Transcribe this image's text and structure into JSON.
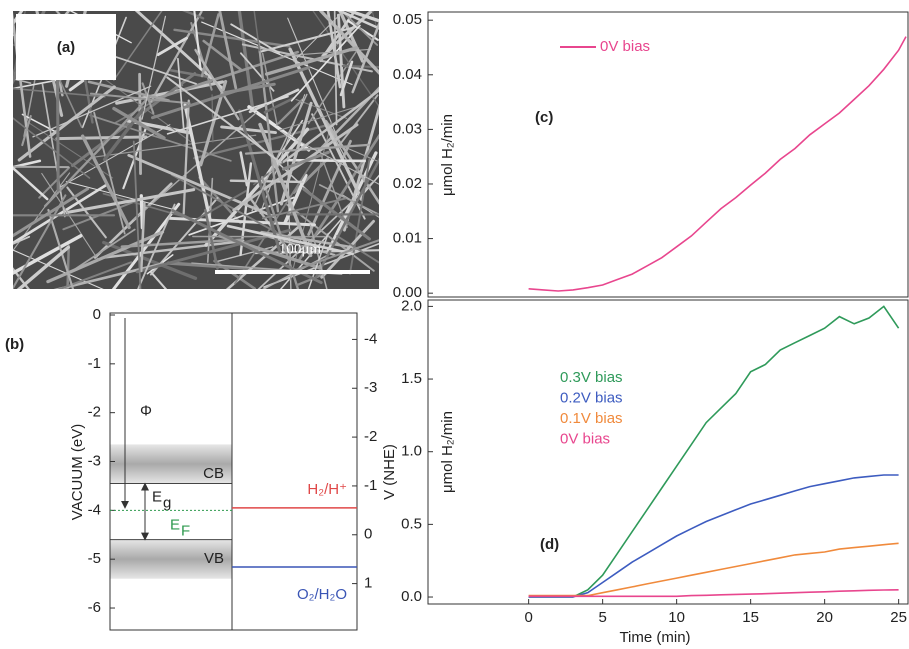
{
  "image_panel": {
    "label": "(a)",
    "scale_bar": "100μm"
  },
  "chart_data": [
    {
      "type": "band-diagram",
      "panel_label": "(b)",
      "ylabel": "VACUUM (eV)",
      "y2label": "V (NHE)",
      "ylim": [
        -6.45,
        0
      ],
      "yticks": [
        0,
        -1,
        -2,
        -3,
        -4,
        -5,
        -6
      ],
      "y2lim": [
        -4.5,
        1.95
      ],
      "y2ticks": [
        -4,
        -3,
        -2,
        -1,
        0,
        1
      ],
      "bands": [
        {
          "name": "CB",
          "top": -2.65,
          "bottom": -3.45
        },
        {
          "name": "VB",
          "top": -4.6,
          "bottom": -5.4
        }
      ],
      "work_function": {
        "label": "Φ",
        "value": -3.95
      },
      "band_gap": {
        "label": "E",
        "sub": "g",
        "top": -3.45,
        "bottom": -4.6
      },
      "fermi_level": {
        "label": "E",
        "sub": "F",
        "value": -4.0,
        "color": "#2e9a4e"
      },
      "redox_levels": [
        {
          "label": "H₂/H⁺",
          "value": -3.95,
          "color": "#e04848"
        },
        {
          "label": "O₂/H₂O",
          "value": -5.16,
          "color": "#3a55b5"
        }
      ]
    },
    {
      "type": "line",
      "panel_label": "(c)",
      "ylabel": "μmol H₂/min",
      "xlim": [
        -6.8,
        25.7
      ],
      "ylim": [
        -0.0007,
        0.0515
      ],
      "yticks": [
        {
          "value": 0,
          "label": "0.00"
        },
        {
          "value": 0.01,
          "label": "0.01"
        },
        {
          "value": 0.02,
          "label": "0.02"
        },
        {
          "value": 0.03,
          "label": "0.03"
        },
        {
          "value": 0.04,
          "label": "0.04"
        },
        {
          "value": 0.05,
          "label": "0.05"
        }
      ],
      "x": [
        0,
        1,
        2,
        3,
        4,
        5,
        6,
        7,
        8,
        9,
        10,
        11,
        12,
        13,
        14,
        15,
        16,
        17,
        18,
        19,
        20,
        21,
        22,
        23,
        24,
        25,
        25.5
      ],
      "series": [
        {
          "name": "0V bias",
          "color": "#e8468e",
          "values": [
            0.0008,
            0.0006,
            0.0004,
            0.0006,
            0.001,
            0.0015,
            0.0025,
            0.0035,
            0.005,
            0.0065,
            0.0085,
            0.0105,
            0.013,
            0.0155,
            0.0175,
            0.0198,
            0.022,
            0.0245,
            0.0265,
            0.029,
            0.031,
            0.033,
            0.0355,
            0.038,
            0.041,
            0.0445,
            0.047
          ]
        }
      ]
    },
    {
      "type": "line",
      "panel_label": "(d)",
      "ylabel": "μmol H₂/min",
      "xlabel": "Time (min)",
      "xlim": [
        -6.8,
        25.7
      ],
      "ylim": [
        -0.048,
        2.044
      ],
      "xticks": [
        0,
        5,
        10,
        15,
        20,
        25
      ],
      "yticks": [
        {
          "value": 0,
          "label": "0.0"
        },
        {
          "value": 0.5,
          "label": "0.5"
        },
        {
          "value": 1,
          "label": "1.0"
        },
        {
          "value": 1.5,
          "label": "1.5"
        },
        {
          "value": 2,
          "label": "2.0"
        }
      ],
      "x": [
        0,
        1,
        2,
        3,
        4,
        5,
        6,
        7,
        8,
        9,
        10,
        11,
        12,
        13,
        14,
        15,
        16,
        17,
        18,
        19,
        20,
        21,
        22,
        23,
        24,
        25
      ],
      "series": [
        {
          "name": "0.3V bias",
          "color": "#2f9a5a",
          "values": [
            0,
            0,
            0,
            0,
            0.05,
            0.15,
            0.3,
            0.45,
            0.6,
            0.75,
            0.9,
            1.05,
            1.2,
            1.3,
            1.4,
            1.55,
            1.6,
            1.7,
            1.75,
            1.8,
            1.85,
            1.93,
            1.88,
            1.92,
            2.0,
            1.85
          ]
        },
        {
          "name": "0.2V bias",
          "color": "#3d5cc0",
          "values": [
            0,
            0,
            0,
            0,
            0.03,
            0.1,
            0.17,
            0.24,
            0.3,
            0.36,
            0.42,
            0.47,
            0.52,
            0.56,
            0.6,
            0.64,
            0.67,
            0.7,
            0.73,
            0.76,
            0.78,
            0.8,
            0.82,
            0.83,
            0.84,
            0.84
          ]
        },
        {
          "name": "0.1V bias",
          "color": "#f08a3c",
          "values": [
            0.01,
            0.01,
            0.01,
            0.01,
            0.01,
            0.03,
            0.05,
            0.07,
            0.09,
            0.11,
            0.13,
            0.15,
            0.17,
            0.19,
            0.21,
            0.23,
            0.25,
            0.27,
            0.29,
            0.3,
            0.31,
            0.33,
            0.34,
            0.35,
            0.36,
            0.37
          ]
        },
        {
          "name": "0V bias",
          "color": "#e8468e",
          "values": [
            0.005,
            0.005,
            0.005,
            0.005,
            0.005,
            0.005,
            0.005,
            0.005,
            0.005,
            0.005,
            0.005,
            0.01,
            0.012,
            0.015,
            0.018,
            0.02,
            0.023,
            0.026,
            0.03,
            0.033,
            0.036,
            0.04,
            0.043,
            0.046,
            0.048,
            0.05
          ]
        }
      ]
    }
  ]
}
